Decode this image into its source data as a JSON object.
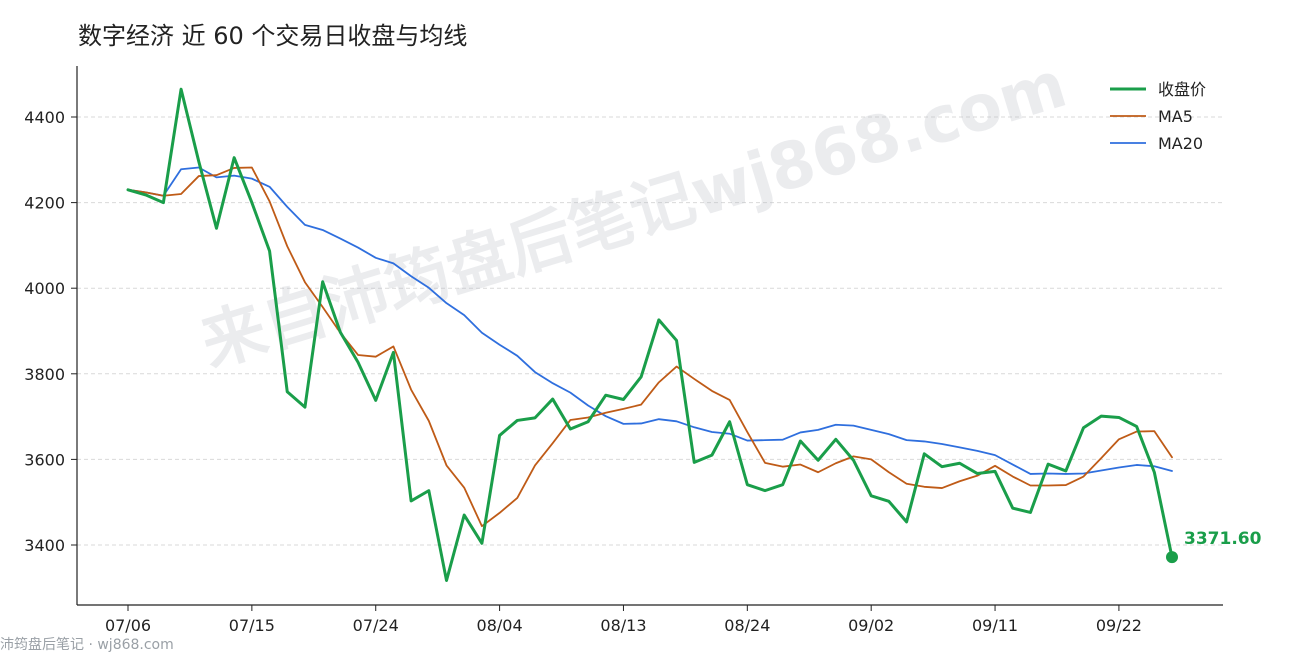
{
  "chart_data": {
    "type": "line",
    "title": "数字经济 近 60 个交易日收盘与均线",
    "xlabel": "",
    "ylabel": "",
    "ylim": [
      3280,
      4510
    ],
    "yticks": [
      3400,
      3600,
      3800,
      4000,
      4200,
      4400
    ],
    "xtick_labels": [
      "07/06",
      "07/15",
      "07/24",
      "08/04",
      "08/13",
      "08/24",
      "09/02",
      "09/11",
      "09/22"
    ],
    "xtick_index": [
      0,
      7,
      14,
      21,
      28,
      35,
      42,
      49,
      56
    ],
    "grid": "y",
    "legend": "top-right",
    "series": [
      {
        "name": "收盘价",
        "color": "#1a9e4a",
        "values": [
          4230,
          4218,
          4200,
          4465,
          4296,
          4140,
          4305,
          4200,
          4087,
          3758,
          3722,
          4015,
          3897,
          3827,
          3738,
          3850,
          3503,
          3527,
          3317,
          3470,
          3404,
          3656,
          3691,
          3697,
          3741,
          3671,
          3688,
          3750,
          3740,
          3793,
          3926,
          3878,
          3593,
          3610,
          3688,
          3541,
          3527,
          3541,
          3643,
          3598,
          3647,
          3598,
          3515,
          3502,
          3454,
          3613,
          3583,
          3591,
          3567,
          3572,
          3486,
          3476,
          3589,
          3573,
          3674,
          3701,
          3698,
          3677,
          3570,
          3371.6
        ]
      },
      {
        "name": "MA5",
        "color": "#bf5b17",
        "values": [
          4230,
          4224,
          4216,
          4220,
          4262,
          4264,
          4281,
          4282,
          4203,
          4098,
          4014,
          3956,
          3896,
          3844,
          3840,
          3864,
          3763,
          3690,
          3586,
          3534,
          3444,
          3475,
          3510,
          3586,
          3638,
          3692,
          3698,
          3709,
          3718,
          3728,
          3780,
          3817,
          3788,
          3760,
          3739,
          3664,
          3592,
          3583,
          3588,
          3570,
          3591,
          3607,
          3600,
          3570,
          3543,
          3536,
          3533,
          3549,
          3562,
          3585,
          3560,
          3539,
          3539,
          3540,
          3560,
          3603,
          3647,
          3665,
          3666,
          3605
        ]
      },
      {
        "name": "MA20",
        "color": "#2f6fde",
        "values": [
          4230,
          4224,
          4216,
          4278,
          4282,
          4259,
          4263,
          4256,
          4237,
          4190,
          4148,
          4136,
          4116,
          4095,
          4071,
          4058,
          4028,
          4001,
          3965,
          3937,
          3896,
          3868,
          3842,
          3804,
          3778,
          3756,
          3726,
          3701,
          3683,
          3684,
          3694,
          3689,
          3675,
          3664,
          3660,
          3644,
          3645,
          3646,
          3663,
          3669,
          3681,
          3679,
          3669,
          3659,
          3645,
          3642,
          3636,
          3628,
          3620,
          3610,
          3588,
          3566,
          3567,
          3566,
          3567,
          3574,
          3581,
          3587,
          3584,
          3573
        ]
      }
    ],
    "last_value_label": "3371.60",
    "watermark": "来自沛筠盘后笔记wj868.com"
  },
  "footer": {
    "text": "沛筠盘后笔记 · wj868.com"
  }
}
